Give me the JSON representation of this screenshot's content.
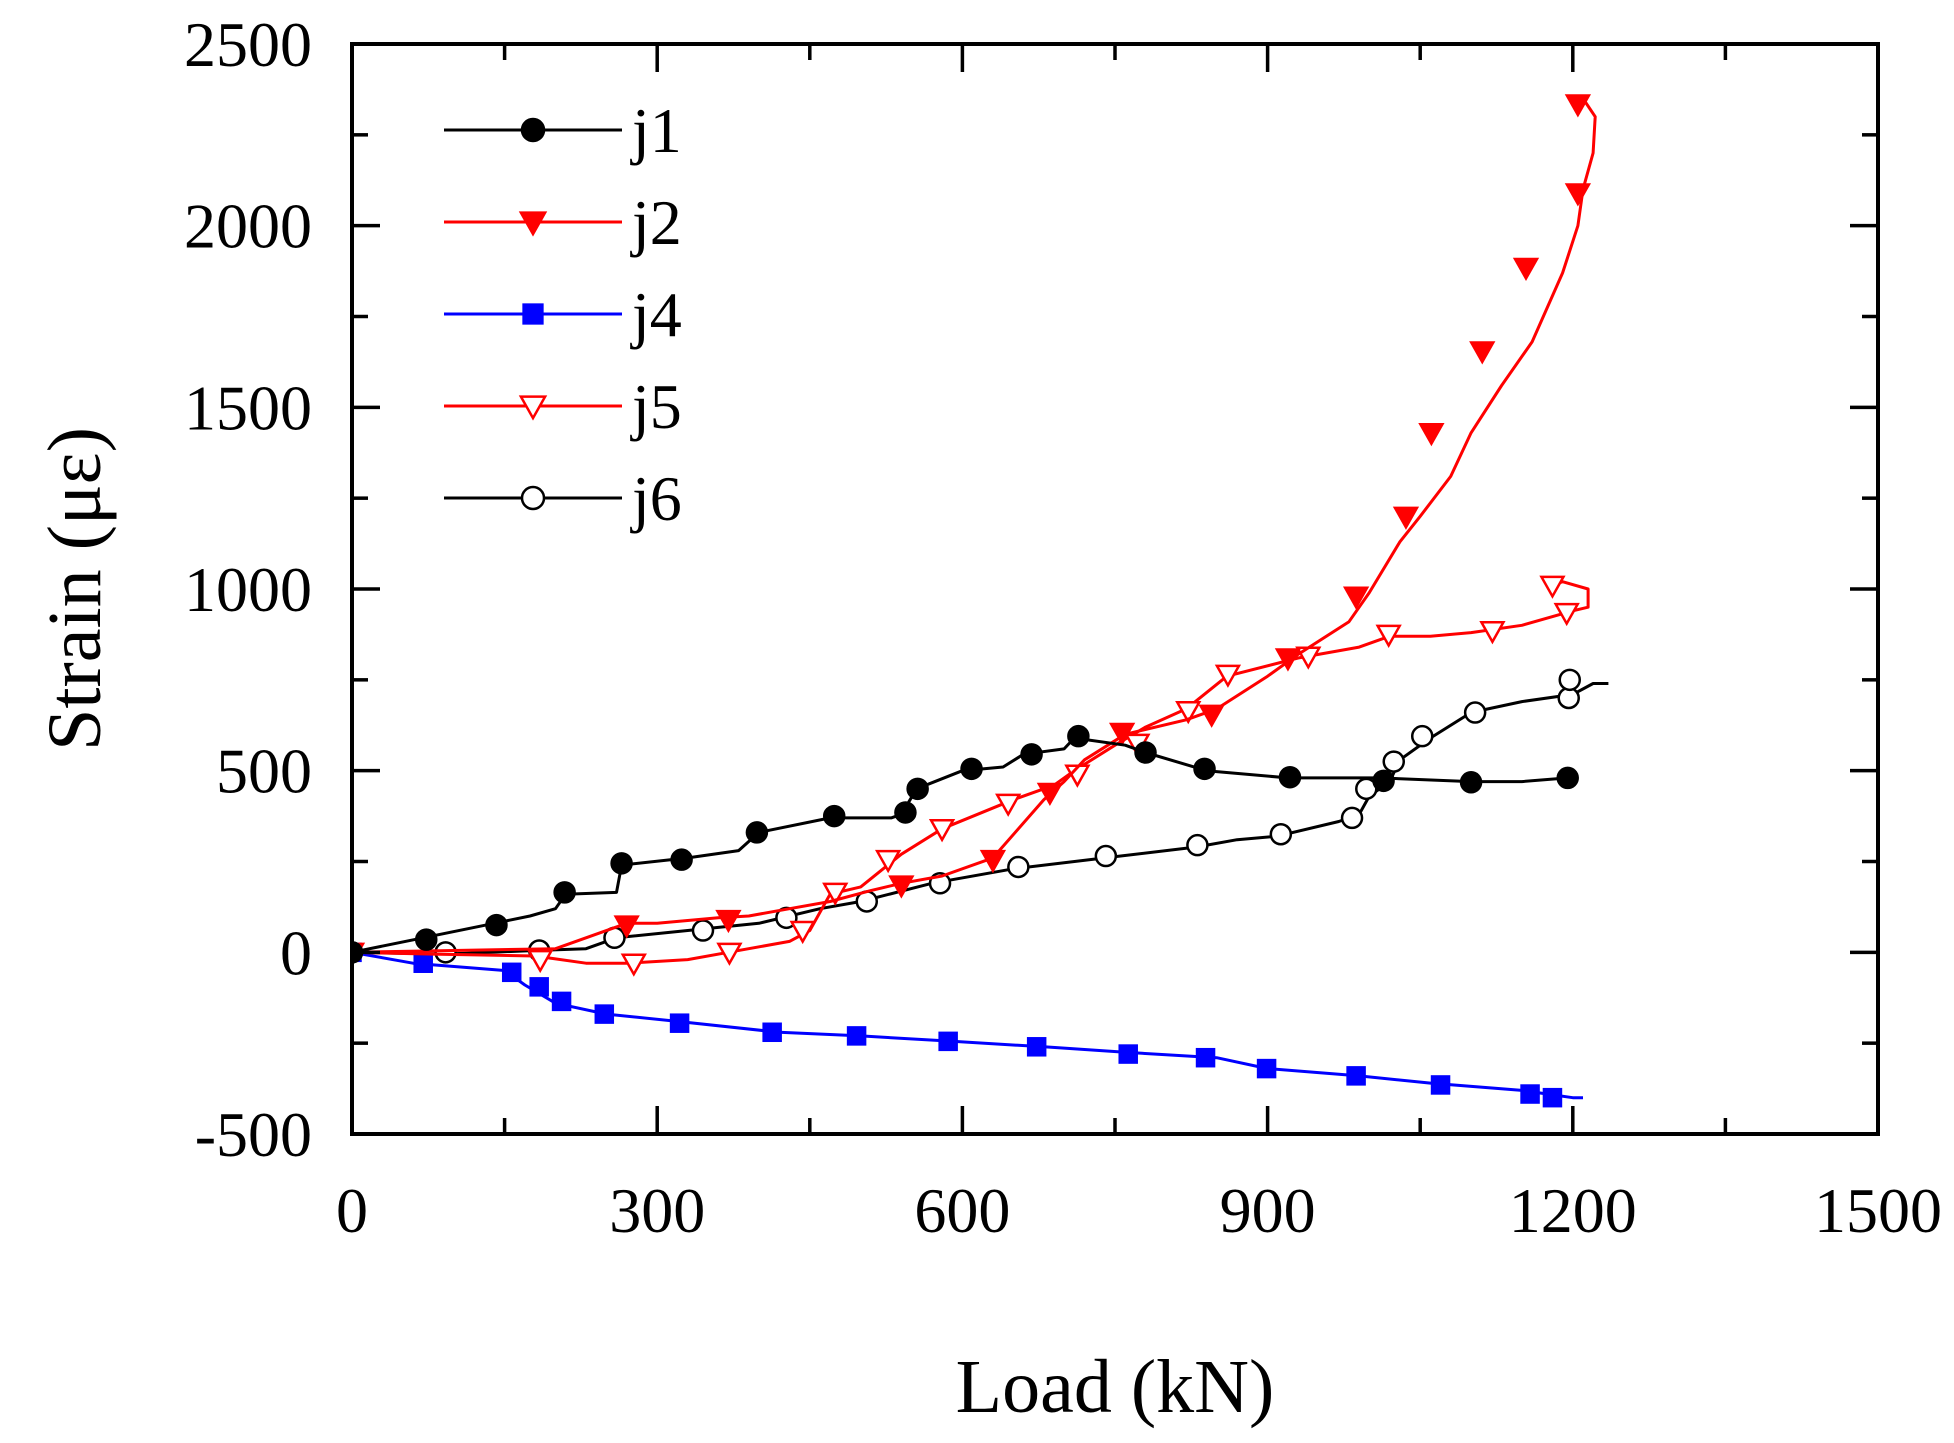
{
  "chart_data": {
    "type": "line",
    "title": "",
    "xlabel": "Load (kN)",
    "ylabel": "Strain (με)",
    "xlim": [
      0,
      1500
    ],
    "ylim": [
      -500,
      2500
    ],
    "xticks": [
      0,
      300,
      600,
      900,
      1200,
      1500
    ],
    "yticks": [
      -500,
      0,
      500,
      1000,
      1500,
      2000,
      2500
    ],
    "xtick_labels": [
      "0",
      "300",
      "600",
      "900",
      "1200",
      "1500"
    ],
    "ytick_labels": [
      "-500",
      "0",
      "500",
      "1000",
      "1500",
      "2000",
      "2500"
    ],
    "grid": false,
    "legend_position": "top-left",
    "series": [
      {
        "name": "j1",
        "color": "#000000",
        "marker": "filled-circle",
        "line": [
          [
            0,
            0
          ],
          [
            70,
            40
          ],
          [
            140,
            80
          ],
          [
            175,
            100
          ],
          [
            200,
            120
          ],
          [
            210,
            160
          ],
          [
            260,
            165
          ],
          [
            265,
            240
          ],
          [
            330,
            260
          ],
          [
            380,
            280
          ],
          [
            400,
            330
          ],
          [
            470,
            370
          ],
          [
            500,
            370
          ],
          [
            530,
            370
          ],
          [
            540,
            380
          ],
          [
            555,
            450
          ],
          [
            600,
            500
          ],
          [
            640,
            510
          ],
          [
            660,
            545
          ],
          [
            700,
            560
          ],
          [
            710,
            590
          ],
          [
            760,
            570
          ],
          [
            780,
            550
          ],
          [
            840,
            500
          ],
          [
            920,
            480
          ],
          [
            1010,
            480
          ],
          [
            1100,
            470
          ],
          [
            1150,
            470
          ],
          [
            1195,
            480
          ]
        ],
        "points": [
          [
            0,
            0
          ],
          [
            73,
            35
          ],
          [
            142,
            75
          ],
          [
            209,
            165
          ],
          [
            265,
            245
          ],
          [
            324,
            255
          ],
          [
            398,
            330
          ],
          [
            474,
            375
          ],
          [
            544,
            385
          ],
          [
            556,
            450
          ],
          [
            609,
            505
          ],
          [
            668,
            545
          ],
          [
            714,
            595
          ],
          [
            780,
            550
          ],
          [
            838,
            505
          ],
          [
            922,
            482
          ],
          [
            1014,
            472
          ],
          [
            1100,
            468
          ],
          [
            1195,
            480
          ]
        ]
      },
      {
        "name": "j2",
        "color": "#ff0000",
        "marker": "filled-triangle-down",
        "line": [
          [
            0,
            0
          ],
          [
            100,
            5
          ],
          [
            200,
            10
          ],
          [
            270,
            80
          ],
          [
            300,
            80
          ],
          [
            360,
            95
          ],
          [
            390,
            100
          ],
          [
            430,
            120
          ],
          [
            470,
            140
          ],
          [
            510,
            170
          ],
          [
            540,
            190
          ],
          [
            580,
            210
          ],
          [
            630,
            260
          ],
          [
            680,
            420
          ],
          [
            700,
            470
          ],
          [
            720,
            530
          ],
          [
            760,
            600
          ],
          [
            820,
            640
          ],
          [
            850,
            670
          ],
          [
            900,
            760
          ],
          [
            930,
            820
          ],
          [
            980,
            910
          ],
          [
            1000,
            990
          ],
          [
            1030,
            1130
          ],
          [
            1050,
            1200
          ],
          [
            1080,
            1310
          ],
          [
            1100,
            1430
          ],
          [
            1130,
            1560
          ],
          [
            1160,
            1680
          ],
          [
            1190,
            1870
          ],
          [
            1205,
            2000
          ],
          [
            1210,
            2100
          ],
          [
            1220,
            2200
          ],
          [
            1222,
            2300
          ],
          [
            1210,
            2350
          ]
        ],
        "points": [
          [
            270,
            75
          ],
          [
            370,
            90
          ],
          [
            540,
            185
          ],
          [
            630,
            255
          ],
          [
            686,
            440
          ],
          [
            757,
            605
          ],
          [
            845,
            655
          ],
          [
            920,
            810
          ],
          [
            987,
            980
          ],
          [
            1036,
            1200
          ],
          [
            1061,
            1430
          ],
          [
            1111,
            1655
          ],
          [
            1154,
            1885
          ],
          [
            1205,
            2090
          ],
          [
            1205,
            2335
          ]
        ]
      },
      {
        "name": "j4",
        "color": "#0000ff",
        "marker": "filled-square",
        "line": [
          [
            0,
            0
          ],
          [
            60,
            -30
          ],
          [
            150,
            -50
          ],
          [
            170,
            -90
          ],
          [
            200,
            -140
          ],
          [
            250,
            -170
          ],
          [
            320,
            -190
          ],
          [
            420,
            -220
          ],
          [
            500,
            -230
          ],
          [
            590,
            -245
          ],
          [
            680,
            -260
          ],
          [
            760,
            -275
          ],
          [
            850,
            -290
          ],
          [
            900,
            -320
          ],
          [
            990,
            -340
          ],
          [
            1060,
            -360
          ],
          [
            1150,
            -380
          ],
          [
            1200,
            -400
          ],
          [
            1210,
            -400
          ]
        ],
        "points": [
          [
            0,
            0
          ],
          [
            70,
            -30
          ],
          [
            157,
            -55
          ],
          [
            184,
            -95
          ],
          [
            206,
            -135
          ],
          [
            248,
            -170
          ],
          [
            322,
            -195
          ],
          [
            413,
            -220
          ],
          [
            496,
            -230
          ],
          [
            586,
            -245
          ],
          [
            673,
            -260
          ],
          [
            763,
            -280
          ],
          [
            839,
            -290
          ],
          [
            899,
            -320
          ],
          [
            987,
            -340
          ],
          [
            1070,
            -365
          ],
          [
            1158,
            -390
          ],
          [
            1180,
            -400
          ]
        ]
      },
      {
        "name": "j5",
        "color": "#ff0000",
        "marker": "open-triangle-down",
        "line": [
          [
            0,
            0
          ],
          [
            80,
            -5
          ],
          [
            180,
            -10
          ],
          [
            230,
            -30
          ],
          [
            270,
            -30
          ],
          [
            330,
            -20
          ],
          [
            370,
            0
          ],
          [
            430,
            30
          ],
          [
            450,
            60
          ],
          [
            470,
            160
          ],
          [
            500,
            180
          ],
          [
            540,
            270
          ],
          [
            580,
            340
          ],
          [
            650,
            420
          ],
          [
            690,
            460
          ],
          [
            710,
            500
          ],
          [
            750,
            570
          ],
          [
            780,
            620
          ],
          [
            820,
            670
          ],
          [
            860,
            760
          ],
          [
            930,
            810
          ],
          [
            990,
            840
          ],
          [
            1020,
            870
          ],
          [
            1060,
            870
          ],
          [
            1100,
            880
          ],
          [
            1150,
            900
          ],
          [
            1200,
            940
          ],
          [
            1215,
            950
          ],
          [
            1215,
            1000
          ],
          [
            1190,
            1020
          ],
          [
            1180,
            1010
          ]
        ],
        "points": [
          [
            0,
            0
          ],
          [
            185,
            -20
          ],
          [
            277,
            -30
          ],
          [
            371,
            0
          ],
          [
            443,
            60
          ],
          [
            475,
            165
          ],
          [
            527,
            255
          ],
          [
            580,
            340
          ],
          [
            645,
            410
          ],
          [
            713,
            490
          ],
          [
            772,
            575
          ],
          [
            822,
            665
          ],
          [
            861,
            765
          ],
          [
            940,
            815
          ],
          [
            1019,
            875
          ],
          [
            1121,
            885
          ],
          [
            1194,
            935
          ],
          [
            1180,
            1010
          ]
        ]
      },
      {
        "name": "j6",
        "color": "#000000",
        "marker": "open-circle",
        "line": [
          [
            0,
            0
          ],
          [
            90,
            -5
          ],
          [
            180,
            5
          ],
          [
            230,
            10
          ],
          [
            260,
            40
          ],
          [
            330,
            60
          ],
          [
            400,
            80
          ],
          [
            460,
            120
          ],
          [
            500,
            140
          ],
          [
            570,
            190
          ],
          [
            650,
            230
          ],
          [
            740,
            260
          ],
          [
            830,
            290
          ],
          [
            870,
            310
          ],
          [
            910,
            320
          ],
          [
            970,
            360
          ],
          [
            990,
            380
          ],
          [
            1000,
            430
          ],
          [
            1020,
            470
          ],
          [
            1030,
            530
          ],
          [
            1060,
            590
          ],
          [
            1100,
            660
          ],
          [
            1150,
            690
          ],
          [
            1200,
            710
          ],
          [
            1220,
            740
          ],
          [
            1235,
            740
          ]
        ],
        "points": [
          [
            0,
            0
          ],
          [
            92,
            0
          ],
          [
            184,
            5
          ],
          [
            258,
            40
          ],
          [
            345,
            60
          ],
          [
            427,
            95
          ],
          [
            506,
            140
          ],
          [
            578,
            190
          ],
          [
            655,
            235
          ],
          [
            741,
            265
          ],
          [
            831,
            295
          ],
          [
            913,
            325
          ],
          [
            983,
            370
          ],
          [
            997,
            450
          ],
          [
            1024,
            525
          ],
          [
            1052,
            595
          ],
          [
            1104,
            660
          ],
          [
            1196,
            700
          ],
          [
            1197,
            750
          ]
        ]
      }
    ]
  }
}
